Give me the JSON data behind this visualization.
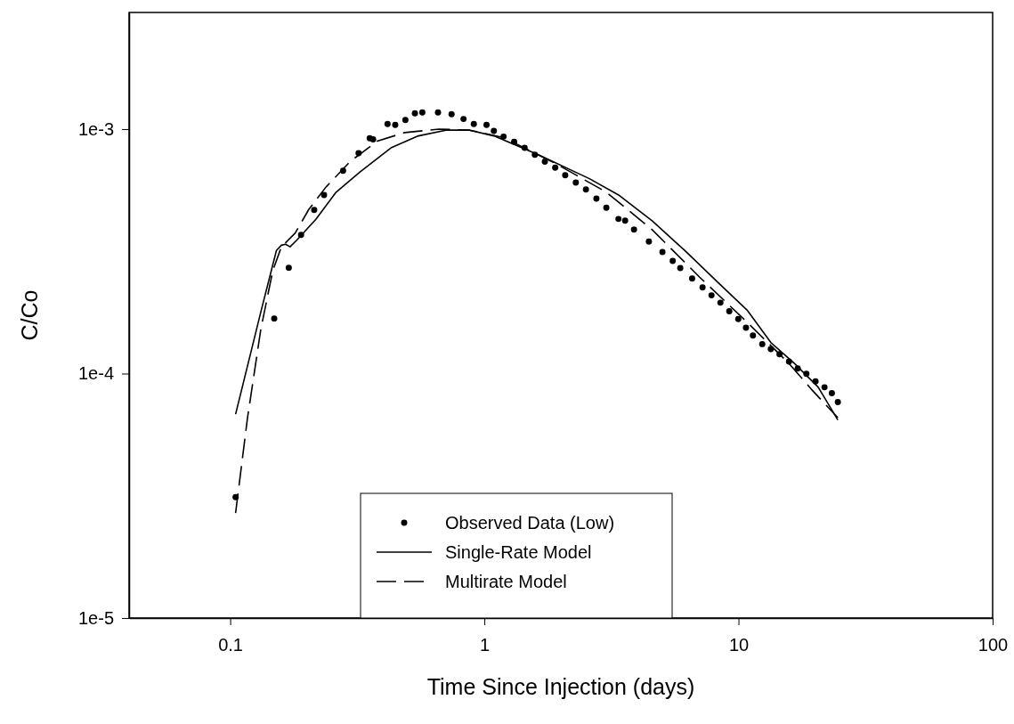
{
  "chart_data": {
    "type": "scatter",
    "xlabel": "Time Since Injection (days)",
    "ylabel": "C/Co",
    "log": "xy",
    "xlim": [
      0.04,
      100
    ],
    "ylim": [
      1e-05,
      0.003
    ],
    "xticks": [
      0.1,
      1,
      10,
      100
    ],
    "yticks": [
      {
        "value": 1e-05,
        "label": "1e-5"
      },
      {
        "value": 0.0001,
        "label": "1e-4"
      },
      {
        "value": 0.001,
        "label": "1e-3"
      }
    ],
    "grid": false,
    "legend": "bottom",
    "marker": "circle",
    "series": [
      {
        "name": "Observed Data (Low)",
        "color": "#000000",
        "x": [
          0.105,
          0.149,
          0.17,
          0.19,
          0.214,
          0.234,
          0.278,
          0.32,
          0.354,
          0.365,
          0.416,
          0.446,
          0.489,
          0.533,
          0.57,
          0.657,
          0.743,
          0.828,
          0.909,
          1.02,
          1.09,
          1.19,
          1.31,
          1.44,
          1.58,
          1.73,
          1.9,
          2.08,
          2.29,
          2.51,
          2.76,
          3.02,
          3.37,
          3.58,
          3.88,
          4.44,
          5.02,
          5.51,
          5.9,
          6.57,
          7.22,
          7.83,
          8.49,
          9.2,
          9.98,
          10.7,
          11.4,
          12.4,
          13.4,
          14.5,
          15.8,
          17.1,
          18.5,
          20.1,
          21.8,
          23.3,
          24.6
        ],
        "values": [
          3.12e-05,
          0.000168,
          0.000271,
          0.000369,
          0.000467,
          0.000537,
          0.000676,
          0.000797,
          0.000917,
          0.000908,
          0.00105,
          0.00104,
          0.00109,
          0.00116,
          0.00117,
          0.00117,
          0.00115,
          0.0011,
          0.00105,
          0.00104,
          0.000984,
          0.000932,
          0.000888,
          0.000838,
          0.000786,
          0.000736,
          0.000695,
          0.000648,
          0.000604,
          0.000566,
          0.00052,
          0.000477,
          0.000429,
          0.000422,
          0.000388,
          0.000347,
          0.000314,
          0.000289,
          0.00027,
          0.000245,
          0.000225,
          0.000209,
          0.000195,
          0.00018,
          0.000167,
          0.000154,
          0.000143,
          0.000132,
          0.000126,
          0.00012,
          0.000112,
          0.000105,
          9.98e-05,
          9.3e-05,
          8.79e-05,
          8.31e-05,
          7.64e-05
        ]
      },
      {
        "name": "Single-Rate Model",
        "type": "line",
        "color": "#000000",
        "line_style": "solid",
        "marker": "none",
        "x": [
          0.105,
          0.132,
          0.152,
          0.159,
          0.165,
          0.172,
          0.183,
          0.217,
          0.261,
          0.324,
          0.429,
          0.55,
          0.705,
          0.875,
          1.09,
          1.63,
          2.59,
          3.4,
          4.57,
          6.14,
          8.37,
          10.8,
          13.4,
          16.6,
          20.6,
          24.6
        ],
        "values": [
          6.82e-05,
          0.000179,
          0.000319,
          0.000335,
          0.000338,
          0.00033,
          0.000352,
          0.000427,
          0.000552,
          0.000668,
          0.000838,
          0.000938,
          0.00099,
          0.00099,
          0.000938,
          0.000786,
          0.000627,
          0.000535,
          0.000422,
          0.000319,
          0.000234,
          0.000182,
          0.000134,
          0.00011,
          8.79e-05,
          6.46e-05
        ]
      },
      {
        "name": "Multirate Model",
        "type": "line",
        "color": "#000000",
        "line_style": "dashed",
        "marker": "none",
        "x": [
          0.105,
          0.117,
          0.132,
          0.147,
          0.159,
          0.18,
          0.204,
          0.238,
          0.296,
          0.379,
          0.486,
          0.662,
          0.875,
          1.19,
          1.9,
          3.02,
          4.57,
          7.03,
          10.5,
          15.8,
          19.5,
          24.6
        ],
        "values": [
          2.69e-05,
          6.61e-05,
          0.000152,
          0.000263,
          0.00033,
          0.000375,
          0.00047,
          0.000579,
          0.000736,
          0.000893,
          0.000968,
          0.001,
          0.00099,
          0.000923,
          0.000725,
          0.000552,
          0.000388,
          0.000248,
          0.000167,
          0.00011,
          8.55e-05,
          6.6e-05
        ]
      }
    ]
  }
}
